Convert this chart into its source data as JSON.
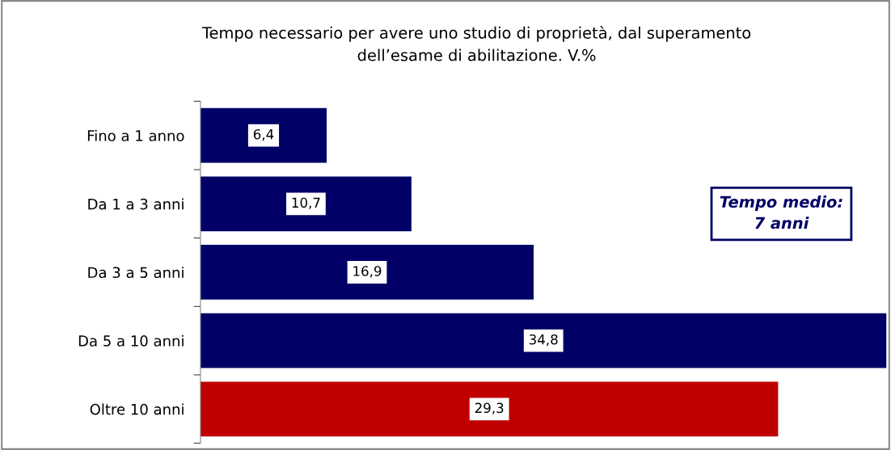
{
  "chart_data": {
    "type": "bar",
    "orientation": "horizontal",
    "title": "Tempo necessario per avere uno studio di proprietà, dal superamento\ndell’esame di abilitazione. V.%",
    "categories": [
      "Fino a 1 anno",
      "Da 1 a 3 anni",
      "Da 3 a 5 anni",
      "Da 5 a 10 anni",
      "Oltre 10 anni"
    ],
    "values": [
      6.4,
      10.7,
      16.9,
      34.8,
      29.3
    ],
    "colors": [
      "#000066",
      "#000066",
      "#000066",
      "#000066",
      "#c00000"
    ],
    "value_labels": [
      "6,4",
      "10,7",
      "16,9",
      "34,8",
      "29,3"
    ],
    "annotations": [
      "Tempo medio:\n7 anni"
    ],
    "grid": false,
    "legend": false
  }
}
